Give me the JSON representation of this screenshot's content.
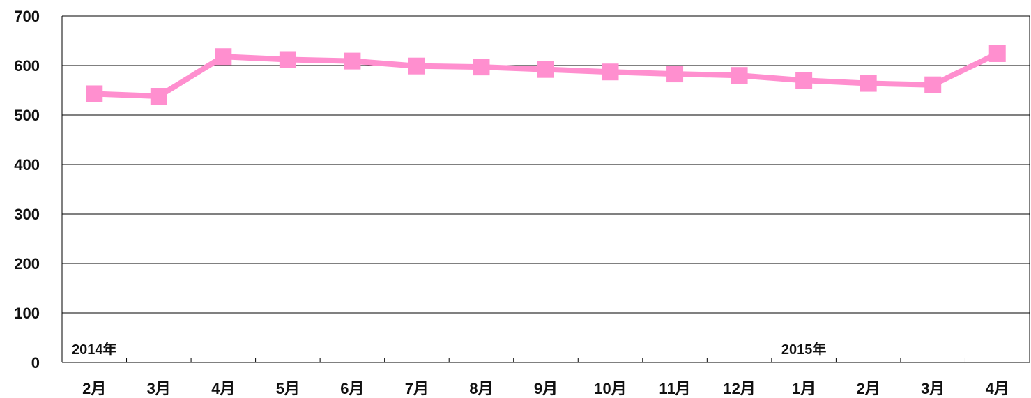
{
  "chart_data": {
    "type": "line",
    "categories": [
      "2月",
      "3月",
      "4月",
      "5月",
      "6月",
      "7月",
      "8月",
      "9月",
      "10月",
      "11月",
      "12月",
      "1月",
      "2月",
      "3月",
      "4月"
    ],
    "series": [
      {
        "values": [
          543,
          538,
          618,
          612,
          609,
          599,
          597,
          592,
          587,
          583,
          580,
          570,
          564,
          561,
          624
        ]
      }
    ],
    "year_labels": [
      {
        "label": "2014年",
        "category_index": 0
      },
      {
        "label": "2015年",
        "category_index": 11
      }
    ],
    "ylim": [
      0,
      700
    ],
    "yticks": [
      0,
      100,
      200,
      300,
      400,
      500,
      600,
      700
    ],
    "grid": true,
    "title": "",
    "xlabel": "",
    "ylabel": "",
    "colors": {
      "line": "#ff8fcf",
      "marker": "#ff8fcf",
      "grid": "#000000",
      "axis": "#000000"
    }
  }
}
